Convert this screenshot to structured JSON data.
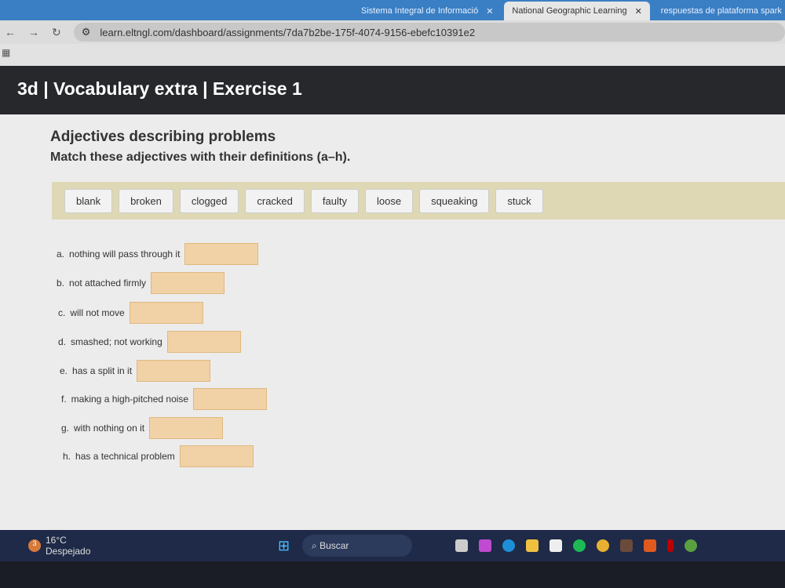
{
  "browser": {
    "tabs": [
      {
        "title": "Sistema Integral de Informació",
        "active": false
      },
      {
        "title": "National Geographic Learning",
        "active": true
      },
      {
        "title": "respuestas de plataforma spark",
        "active": false
      }
    ],
    "url": "learn.eltngl.com/dashboard/assignments/7da7b2be-175f-4074-9156-ebefc10391e2"
  },
  "page": {
    "title": "3d | Vocabulary extra | Exercise 1",
    "heading": "Adjectives describing problems",
    "instruction": "Match these adjectives with their definitions (a–h).",
    "word_bank": [
      "blank",
      "broken",
      "clogged",
      "cracked",
      "faulty",
      "loose",
      "squeaking",
      "stuck"
    ],
    "questions": [
      {
        "label": "a.",
        "text": "nothing will pass through it",
        "answer": ""
      },
      {
        "label": "b.",
        "text": "not attached firmly",
        "answer": ""
      },
      {
        "label": "c.",
        "text": "will not move",
        "answer": ""
      },
      {
        "label": "d.",
        "text": "smashed; not working",
        "answer": ""
      },
      {
        "label": "e.",
        "text": "has a split in it",
        "answer": ""
      },
      {
        "label": "f.",
        "text": "making a high-pitched noise",
        "answer": ""
      },
      {
        "label": "g.",
        "text": "with nothing on it",
        "answer": ""
      },
      {
        "label": "h.",
        "text": "has a technical problem",
        "answer": ""
      }
    ]
  },
  "taskbar": {
    "temperature": "16°C",
    "weather": "Despejado",
    "search_placeholder": "Buscar",
    "badge": "3"
  },
  "colors": {
    "answer_box": "#f1d2a7",
    "word_bank_bg": "#ded9b4",
    "header_bg": "#26282c"
  }
}
